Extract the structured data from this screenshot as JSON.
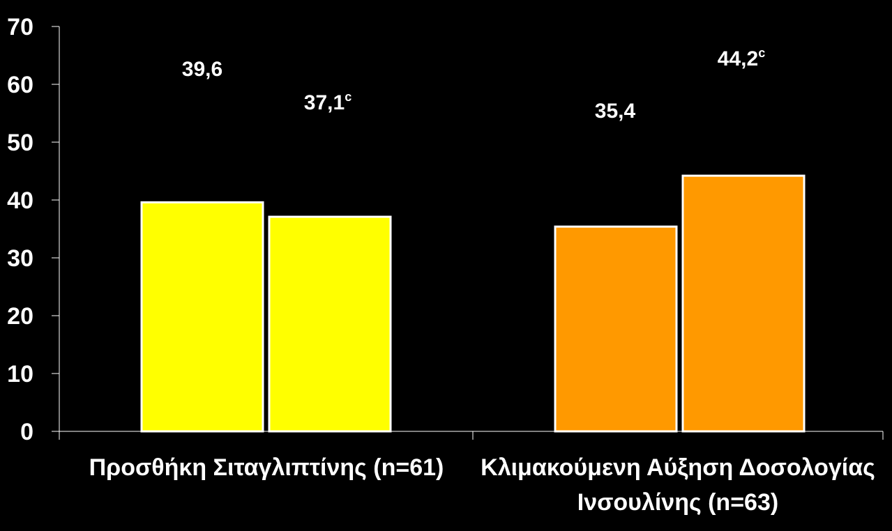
{
  "chart_data": {
    "type": "bar",
    "categories": [
      [
        "Προσθήκη Σιταγλιπτίνης (n=61)"
      ],
      [
        "Κλιμακούμενη Αύξηση Δοσολογίας",
        "Ινσουλίνης (n=63)"
      ]
    ],
    "bars": [
      {
        "category": 0,
        "value": 39.6,
        "label": "39,6",
        "note": "",
        "color": "#ffff00"
      },
      {
        "category": 0,
        "value": 37.1,
        "label": "37,1",
        "note": "c",
        "color": "#ffff00"
      },
      {
        "category": 1,
        "value": 35.4,
        "label": "35,4",
        "note": "",
        "color": "#ff9900"
      },
      {
        "category": 1,
        "value": 44.2,
        "label": "44,2",
        "note": "c",
        "color": "#ff9900"
      }
    ],
    "yticks": [
      "0",
      "10",
      "20",
      "30",
      "40",
      "50",
      "60",
      "70"
    ],
    "ylim": [
      0,
      70
    ],
    "grid": false,
    "legend": "none"
  }
}
